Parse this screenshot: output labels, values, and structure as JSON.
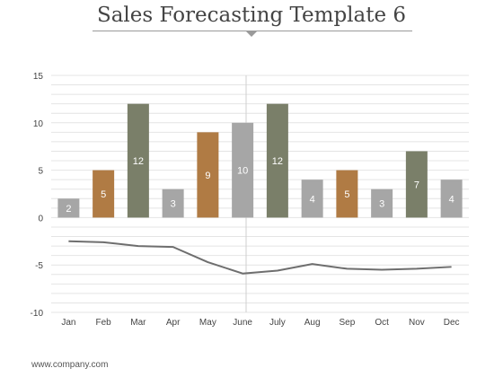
{
  "title": "Sales Forecasting Template 6",
  "footer": "www.company.com",
  "colors": {
    "gray": "#a6a6a6",
    "olive": "#7a7f69",
    "orange": "#b07b44",
    "line": "#6e6e6e",
    "grid": "#e4e4e4",
    "axis_text": "#444444"
  },
  "chart_data": {
    "type": "bar",
    "categories": [
      "Jan",
      "Feb",
      "Mar",
      "Apr",
      "May",
      "June",
      "July",
      "Aug",
      "Sep",
      "Oct",
      "Nov",
      "Dec"
    ],
    "series": [
      {
        "type": "bar",
        "values": [
          2,
          5,
          12,
          3,
          9,
          10,
          12,
          4,
          5,
          3,
          7,
          4
        ],
        "colors": [
          "gray",
          "orange",
          "olive",
          "gray",
          "orange",
          "gray",
          "olive",
          "gray",
          "orange",
          "gray",
          "olive",
          "gray"
        ],
        "data_labels": true
      },
      {
        "type": "line",
        "values": [
          -2.5,
          -2.6,
          -3.0,
          -3.1,
          -4.7,
          -5.9,
          -5.6,
          -4.9,
          -5.4,
          -5.5,
          -5.4,
          -5.2
        ]
      }
    ],
    "ylim": [
      -10,
      15
    ],
    "yticks": [
      15,
      10,
      5,
      0,
      -5,
      -10
    ],
    "grid": true,
    "legend": "none"
  }
}
